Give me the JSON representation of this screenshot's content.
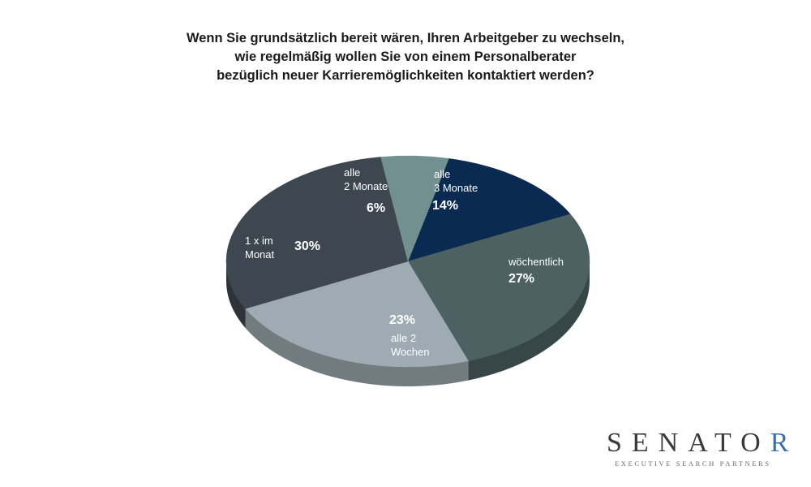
{
  "title_lines": [
    "Wenn Sie grundsätzlich bereit wären, Ihren Arbeitgeber zu wechseln,",
    "wie regelmäßig wollen Sie von einem Personalberater",
    "bezüglich neuer Karrieremöglichkeiten kontaktiert werden?"
  ],
  "chart_data": {
    "type": "pie",
    "style": "3d-tilted",
    "title": "Wenn Sie grundsätzlich bereit wären, Ihren Arbeitgeber zu wechseln, wie regelmäßig wollen Sie von einem Personalberater bezüglich neuer Karrieremöglichkeiten kontaktiert werden?",
    "slices": [
      {
        "label": "alle 3 Monate",
        "label_lines": [
          "alle",
          "3 Monate"
        ],
        "value": 14,
        "value_label": "14%",
        "color": "#0a2a52"
      },
      {
        "label": "wöchentlich",
        "label_lines": [
          "wöchentlich"
        ],
        "value": 27,
        "value_label": "27%",
        "color": "#4d6163"
      },
      {
        "label": "alle 2 Wochen",
        "label_lines": [
          "alle 2",
          "Wochen"
        ],
        "value": 23,
        "value_label": "23%",
        "color": "#9eabb2"
      },
      {
        "label": "1 x im Monat",
        "label_lines": [
          "1 x im",
          "Monat"
        ],
        "value": 30,
        "value_label": "30%",
        "color": "#3e474f"
      },
      {
        "label": "alle 2 Monate",
        "label_lines": [
          "alle",
          "2 Monate"
        ],
        "value": 6,
        "value_label": "6%",
        "color": "#71908f"
      }
    ],
    "legend": "none"
  },
  "logo": {
    "word_main": "SENATO",
    "word_accent": "R",
    "tagline": "EXECUTIVE SEARCH PARTNERS",
    "accent_color": "#3f6eae"
  }
}
